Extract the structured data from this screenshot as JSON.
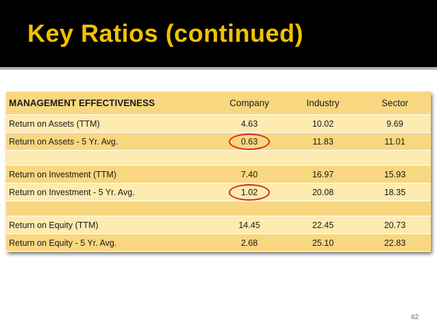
{
  "slide": {
    "title": "Key Ratios (continued)",
    "page_number": "62"
  },
  "table": {
    "header": {
      "label": "MANAGEMENT EFFECTIVENESS",
      "company": "Company",
      "industry": "Industry",
      "sector": "Sector"
    },
    "rows": [
      {
        "label": "Return on Assets (TTM)",
        "company": "4.63",
        "industry": "10.02",
        "sector": "9.69"
      },
      {
        "label": "Return on Assets - 5 Yr. Avg.",
        "company": "0.63",
        "industry": "11.83",
        "sector": "11.01",
        "highlight": true
      },
      {
        "label": "Return on Investment (TTM)",
        "company": "7.40",
        "industry": "16.97",
        "sector": "15.93"
      },
      {
        "label": "Return on Investment - 5 Yr. Avg.",
        "company": "1.02",
        "industry": "20.08",
        "sector": "18.35",
        "highlight": true
      },
      {
        "label": "Return on Equity (TTM)",
        "company": "14.45",
        "industry": "22.45",
        "sector": "20.73"
      },
      {
        "label": "Return on Equity - 5 Yr. Avg.",
        "company": "2.68",
        "industry": "25.10",
        "sector": "22.83"
      }
    ],
    "colors": {
      "light_row": "#fdebb0",
      "dark_row": "#f8d780",
      "highlight_circle": "#d8281c",
      "title_text": "#f2c200",
      "title_bar": "#000000"
    }
  }
}
